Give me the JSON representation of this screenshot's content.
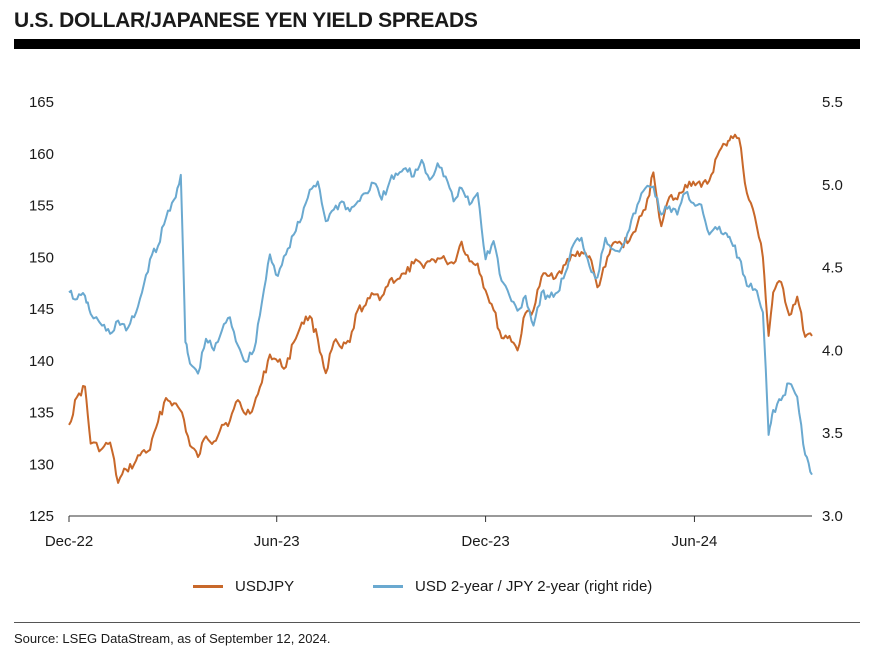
{
  "header": {
    "title": "U.S. DOLLAR/JAPANESE YEN YIELD SPREADS"
  },
  "legend": [
    {
      "label": "USDJPY",
      "color": "#c8682a"
    },
    {
      "label": "USD 2-year / JPY 2-year (right ride)",
      "color": "#6aa9d0"
    }
  ],
  "footer": {
    "source": "Source: LSEG DataStream, as of September 12, 2024."
  },
  "chart_data": {
    "type": "line",
    "x_ticks": [
      "Dec-22",
      "Jun-23",
      "Dec-23",
      "Jun-24"
    ],
    "x_range": [
      "2022-12-01",
      "2024-09-12"
    ],
    "y_left": {
      "min": 125,
      "max": 165,
      "ticks": [
        "125",
        "130",
        "135",
        "140",
        "145",
        "150",
        "155",
        "160",
        "165"
      ]
    },
    "y_right": {
      "min": 3.0,
      "max": 5.5,
      "ticks": [
        "3.0",
        "3.5",
        "4.0",
        "4.5",
        "5.0",
        "5.5"
      ]
    },
    "grid": false,
    "legend_position": "bottom",
    "series": [
      {
        "name": "USDJPY",
        "axis": "left",
        "color": "#c8682a",
        "points": [
          [
            "2022-12-01",
            133.8
          ],
          [
            "2022-12-08",
            136.5
          ],
          [
            "2022-12-15",
            137.5
          ],
          [
            "2022-12-20",
            132.0
          ],
          [
            "2022-12-30",
            131.5
          ],
          [
            "2023-01-06",
            132.1
          ],
          [
            "2023-01-13",
            128.2
          ],
          [
            "2023-01-20",
            129.5
          ],
          [
            "2023-01-27",
            130.0
          ],
          [
            "2023-02-03",
            131.2
          ],
          [
            "2023-02-10",
            131.4
          ],
          [
            "2023-02-17",
            134.1
          ],
          [
            "2023-02-24",
            136.4
          ],
          [
            "2023-03-03",
            135.9
          ],
          [
            "2023-03-10",
            135.0
          ],
          [
            "2023-03-17",
            131.8
          ],
          [
            "2023-03-24",
            130.7
          ],
          [
            "2023-03-31",
            132.7
          ],
          [
            "2023-04-07",
            132.2
          ],
          [
            "2023-04-14",
            133.8
          ],
          [
            "2023-04-21",
            134.2
          ],
          [
            "2023-04-28",
            136.2
          ],
          [
            "2023-05-05",
            134.8
          ],
          [
            "2023-05-12",
            135.7
          ],
          [
            "2023-05-19",
            137.9
          ],
          [
            "2023-05-26",
            140.6
          ],
          [
            "2023-06-02",
            139.9
          ],
          [
            "2023-06-09",
            139.4
          ],
          [
            "2023-06-16",
            141.8
          ],
          [
            "2023-06-23",
            143.7
          ],
          [
            "2023-06-30",
            144.3
          ],
          [
            "2023-07-07",
            142.1
          ],
          [
            "2023-07-14",
            138.8
          ],
          [
            "2023-07-21",
            141.8
          ],
          [
            "2023-07-28",
            141.2
          ],
          [
            "2023-08-04",
            141.8
          ],
          [
            "2023-08-11",
            144.9
          ],
          [
            "2023-08-18",
            145.4
          ],
          [
            "2023-08-25",
            146.4
          ],
          [
            "2023-09-01",
            146.2
          ],
          [
            "2023-09-08",
            147.8
          ],
          [
            "2023-09-15",
            147.9
          ],
          [
            "2023-09-22",
            148.4
          ],
          [
            "2023-09-29",
            149.4
          ],
          [
            "2023-10-06",
            149.3
          ],
          [
            "2023-10-13",
            149.6
          ],
          [
            "2023-10-20",
            149.9
          ],
          [
            "2023-10-27",
            149.7
          ],
          [
            "2023-11-03",
            149.4
          ],
          [
            "2023-11-10",
            151.5
          ],
          [
            "2023-11-17",
            149.6
          ],
          [
            "2023-11-24",
            149.4
          ],
          [
            "2023-12-01",
            146.8
          ],
          [
            "2023-12-08",
            144.9
          ],
          [
            "2023-12-15",
            142.2
          ],
          [
            "2023-12-22",
            142.4
          ],
          [
            "2023-12-29",
            141.0
          ],
          [
            "2024-01-05",
            144.6
          ],
          [
            "2024-01-12",
            144.9
          ],
          [
            "2024-01-19",
            148.1
          ],
          [
            "2024-01-26",
            148.2
          ],
          [
            "2024-02-02",
            148.4
          ],
          [
            "2024-02-09",
            149.3
          ],
          [
            "2024-02-16",
            150.2
          ],
          [
            "2024-02-23",
            150.5
          ],
          [
            "2024-03-01",
            150.1
          ],
          [
            "2024-03-08",
            147.1
          ],
          [
            "2024-03-15",
            149.1
          ],
          [
            "2024-03-22",
            151.4
          ],
          [
            "2024-03-29",
            151.3
          ],
          [
            "2024-04-05",
            151.6
          ],
          [
            "2024-04-12",
            153.2
          ],
          [
            "2024-04-19",
            154.6
          ],
          [
            "2024-04-26",
            158.2
          ],
          [
            "2024-05-03",
            153.0
          ],
          [
            "2024-05-10",
            155.8
          ],
          [
            "2024-05-17",
            155.6
          ],
          [
            "2024-05-24",
            157.0
          ],
          [
            "2024-05-31",
            157.3
          ],
          [
            "2024-06-07",
            156.8
          ],
          [
            "2024-06-14",
            157.4
          ],
          [
            "2024-06-21",
            159.8
          ],
          [
            "2024-06-28",
            160.9
          ],
          [
            "2024-07-03",
            161.7
          ],
          [
            "2024-07-10",
            161.5
          ],
          [
            "2024-07-17",
            156.2
          ],
          [
            "2024-07-24",
            153.9
          ],
          [
            "2024-07-31",
            150.0
          ],
          [
            "2024-08-05",
            142.4
          ],
          [
            "2024-08-09",
            146.6
          ],
          [
            "2024-08-16",
            147.6
          ],
          [
            "2024-08-23",
            144.4
          ],
          [
            "2024-08-30",
            146.2
          ],
          [
            "2024-09-06",
            142.3
          ],
          [
            "2024-09-12",
            142.4
          ]
        ]
      },
      {
        "name": "USD 2-year / JPY 2-year (right ride)",
        "axis": "right",
        "color": "#6aa9d0",
        "points": [
          [
            "2022-12-01",
            4.35
          ],
          [
            "2022-12-08",
            4.31
          ],
          [
            "2022-12-15",
            4.33
          ],
          [
            "2022-12-20",
            4.22
          ],
          [
            "2022-12-30",
            4.15
          ],
          [
            "2023-01-06",
            4.1
          ],
          [
            "2023-01-13",
            4.18
          ],
          [
            "2023-01-20",
            4.12
          ],
          [
            "2023-01-27",
            4.2
          ],
          [
            "2023-02-03",
            4.35
          ],
          [
            "2023-02-10",
            4.55
          ],
          [
            "2023-02-17",
            4.63
          ],
          [
            "2023-02-24",
            4.8
          ],
          [
            "2023-03-03",
            4.91
          ],
          [
            "2023-03-09",
            5.06
          ],
          [
            "2023-03-13",
            4.05
          ],
          [
            "2023-03-17",
            3.92
          ],
          [
            "2023-03-24",
            3.86
          ],
          [
            "2023-03-31",
            4.07
          ],
          [
            "2023-04-07",
            4.0
          ],
          [
            "2023-04-14",
            4.12
          ],
          [
            "2023-04-21",
            4.2
          ],
          [
            "2023-04-28",
            4.03
          ],
          [
            "2023-05-05",
            3.93
          ],
          [
            "2023-05-12",
            4.0
          ],
          [
            "2023-05-19",
            4.29
          ],
          [
            "2023-05-26",
            4.58
          ],
          [
            "2023-06-02",
            4.45
          ],
          [
            "2023-06-09",
            4.58
          ],
          [
            "2023-06-16",
            4.7
          ],
          [
            "2023-06-23",
            4.8
          ],
          [
            "2023-06-30",
            4.97
          ],
          [
            "2023-07-07",
            5.02
          ],
          [
            "2023-07-14",
            4.78
          ],
          [
            "2023-07-21",
            4.85
          ],
          [
            "2023-07-28",
            4.9
          ],
          [
            "2023-08-04",
            4.84
          ],
          [
            "2023-08-11",
            4.9
          ],
          [
            "2023-08-18",
            4.95
          ],
          [
            "2023-08-25",
            5.01
          ],
          [
            "2023-09-01",
            4.91
          ],
          [
            "2023-09-08",
            5.02
          ],
          [
            "2023-09-15",
            5.06
          ],
          [
            "2023-09-22",
            5.1
          ],
          [
            "2023-09-29",
            5.05
          ],
          [
            "2023-10-06",
            5.15
          ],
          [
            "2023-10-13",
            5.03
          ],
          [
            "2023-10-20",
            5.13
          ],
          [
            "2023-10-27",
            5.05
          ],
          [
            "2023-11-03",
            4.9
          ],
          [
            "2023-11-10",
            4.98
          ],
          [
            "2023-11-17",
            4.88
          ],
          [
            "2023-11-24",
            4.95
          ],
          [
            "2023-12-01",
            4.55
          ],
          [
            "2023-12-08",
            4.66
          ],
          [
            "2023-12-15",
            4.42
          ],
          [
            "2023-12-22",
            4.33
          ],
          [
            "2023-12-29",
            4.24
          ],
          [
            "2024-01-05",
            4.33
          ],
          [
            "2024-01-12",
            4.15
          ],
          [
            "2024-01-19",
            4.35
          ],
          [
            "2024-01-26",
            4.32
          ],
          [
            "2024-02-02",
            4.35
          ],
          [
            "2024-02-09",
            4.47
          ],
          [
            "2024-02-16",
            4.64
          ],
          [
            "2024-02-23",
            4.68
          ],
          [
            "2024-03-01",
            4.51
          ],
          [
            "2024-03-08",
            4.44
          ],
          [
            "2024-03-15",
            4.68
          ],
          [
            "2024-03-22",
            4.61
          ],
          [
            "2024-03-29",
            4.62
          ],
          [
            "2024-04-05",
            4.73
          ],
          [
            "2024-04-12",
            4.88
          ],
          [
            "2024-04-19",
            4.98
          ],
          [
            "2024-04-26",
            4.99
          ],
          [
            "2024-05-03",
            4.82
          ],
          [
            "2024-05-10",
            4.87
          ],
          [
            "2024-05-17",
            4.82
          ],
          [
            "2024-05-24",
            4.95
          ],
          [
            "2024-05-31",
            4.89
          ],
          [
            "2024-06-07",
            4.88
          ],
          [
            "2024-06-14",
            4.7
          ],
          [
            "2024-06-21",
            4.73
          ],
          [
            "2024-06-28",
            4.71
          ],
          [
            "2024-07-03",
            4.66
          ],
          [
            "2024-07-10",
            4.56
          ],
          [
            "2024-07-17",
            4.39
          ],
          [
            "2024-07-24",
            4.37
          ],
          [
            "2024-07-31",
            4.23
          ],
          [
            "2024-08-05",
            3.49
          ],
          [
            "2024-08-09",
            3.64
          ],
          [
            "2024-08-16",
            3.7
          ],
          [
            "2024-08-23",
            3.8
          ],
          [
            "2024-08-30",
            3.72
          ],
          [
            "2024-09-06",
            3.37
          ],
          [
            "2024-09-12",
            3.25
          ]
        ]
      }
    ]
  }
}
